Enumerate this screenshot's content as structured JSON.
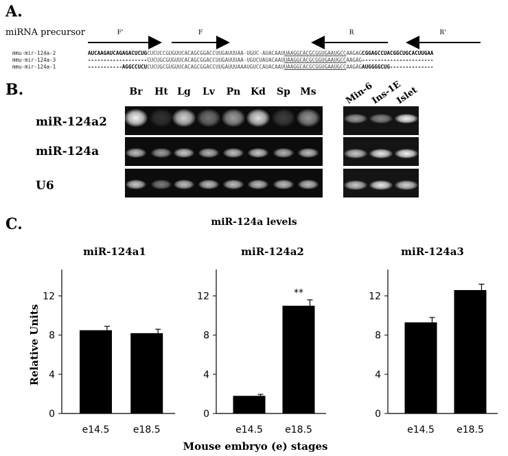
{
  "panel_a": {
    "letter": "A.",
    "precursor_label": "miRNA precursor",
    "primers": [
      "F'",
      "F",
      "R",
      "R'"
    ],
    "sequences": [
      {
        "name": "mmu-mir-124a-2",
        "pre": "AUCAAGAUCAGAGACUCUG",
        "mid": "CUCUCCGUGUUCACAGCGGACCUUGAUUUAA-UGUC-AUACAAU",
        "mature": "UAAGGCACGCGGUGAAUGCC",
        "post": "AAGAG",
        "tail": "CGGAGCCUACGGCUGCACUUGAA"
      },
      {
        "name": "mmu-mir-124a-3",
        "pre": "-------------------",
        "mid": "CUCUGCGUGUUCACAGCGGACCUUGAUUUAA-UGUCUAUACAAU",
        "mature": "UAAGGCACGCGGUGAAUGCC",
        "post": "AAGAG",
        "tail": "-----------------------"
      },
      {
        "name": "mmu-mir-124a-1",
        "pre": "-----------AGGCCUCU",
        "mid": "CUCUGCGUGUUCACAGCGGACCUUGAUUUAAAUGUCCAUACAAU",
        "mature": "UAAGGCACGCGGUGAAUGCC",
        "post": "AAGAG",
        "tail": "AUGGGGCUG--------------"
      }
    ]
  },
  "panel_b": {
    "letter": "B.",
    "tissue_lanes": [
      "Br",
      "Ht",
      "Lg",
      "Lv",
      "Pn",
      "Kd",
      "Sp",
      "Ms"
    ],
    "cell_lanes": [
      "Min-6",
      "Ins-1E",
      "Islet"
    ],
    "rows": [
      "miR-124a2",
      "miR-124a",
      "U6"
    ],
    "band_intensity": {
      "tissue": [
        [
          0.95,
          0.05,
          0.8,
          0.35,
          0.55,
          0.85,
          0.1,
          0.5
        ],
        [
          0.7,
          0.55,
          0.75,
          0.65,
          0.7,
          0.75,
          0.65,
          0.7
        ],
        [
          0.75,
          0.4,
          0.7,
          0.7,
          0.7,
          0.7,
          0.7,
          0.7
        ]
      ],
      "cell": [
        [
          0.55,
          0.45,
          0.95
        ],
        [
          0.75,
          0.9,
          0.95
        ],
        [
          0.75,
          0.9,
          0.8
        ]
      ]
    }
  },
  "panel_c": {
    "letter": "C.",
    "heading": "miR-124a levels",
    "x_axis_title": "Mouse embryo (e) stages",
    "y_axis_title": "Relative Units",
    "annotation": "**"
  },
  "chart_data": [
    {
      "type": "bar",
      "title": "miR-124a1",
      "categories": [
        "e14.5",
        "e18.5"
      ],
      "values": [
        8.5,
        8.2
      ],
      "errors": [
        0.4,
        0.4
      ],
      "ylabel": "Relative Units",
      "ylim": [
        0,
        14
      ],
      "yticks": [
        0,
        4,
        8,
        12
      ]
    },
    {
      "type": "bar",
      "title": "miR-124a2",
      "categories": [
        "e14.5",
        "e18.5"
      ],
      "values": [
        1.8,
        11.0
      ],
      "errors": [
        0.15,
        0.6
      ],
      "ylim": [
        0,
        14
      ],
      "yticks": [
        0,
        4,
        8,
        12
      ],
      "annotation": "**"
    },
    {
      "type": "bar",
      "title": "miR-124a3",
      "categories": [
        "e14.5",
        "e18.5"
      ],
      "values": [
        9.3,
        12.6
      ],
      "errors": [
        0.5,
        0.6
      ],
      "ylim": [
        0,
        14
      ],
      "yticks": [
        0,
        4,
        8,
        12
      ]
    }
  ]
}
